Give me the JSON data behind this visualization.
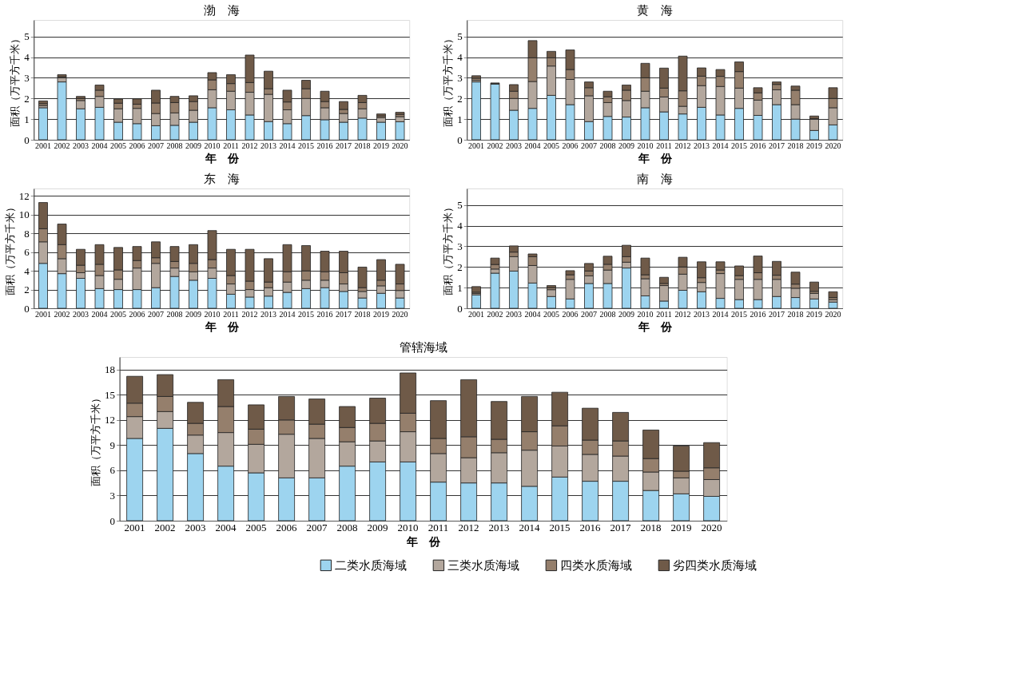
{
  "chart_data": [
    {
      "type": "bar",
      "stacked": true,
      "title": "渤　海",
      "xlabel": "年　份",
      "ylabel": "面积（万平方千米）",
      "categories": [
        "2001",
        "2002",
        "2003",
        "2004",
        "2005",
        "2006",
        "2007",
        "2008",
        "2009",
        "2010",
        "2011",
        "2012",
        "2013",
        "2014",
        "2015",
        "2016",
        "2017",
        "2018",
        "2019",
        "2020"
      ],
      "ylim": [
        0,
        5.8
      ],
      "yticks": [
        0,
        1,
        2,
        3,
        4,
        5
      ],
      "grid": "y",
      "legend": "bottom right",
      "series": [
        {
          "name": "二类水质海域",
          "color": "#9dd4ef",
          "values": [
            1.55,
            2.8,
            1.5,
            1.57,
            0.85,
            0.78,
            0.68,
            0.7,
            0.85,
            1.55,
            1.45,
            1.2,
            0.88,
            0.78,
            1.17,
            0.97,
            0.85,
            1.05,
            0.85,
            0.87
          ]
        },
        {
          "name": "三类水质海域",
          "color": "#b3a79d",
          "values": [
            0.1,
            0.2,
            0.4,
            0.53,
            0.65,
            0.74,
            0.59,
            0.6,
            0.58,
            0.87,
            0.9,
            1.1,
            1.32,
            0.67,
            0.83,
            0.58,
            0.42,
            0.45,
            0.22,
            0.25
          ]
        },
        {
          "name": "四类水质海域",
          "color": "#957f6c",
          "values": [
            0.1,
            0.05,
            0.1,
            0.3,
            0.27,
            0.2,
            0.51,
            0.5,
            0.42,
            0.48,
            0.37,
            0.47,
            0.27,
            0.38,
            0.47,
            0.3,
            0.2,
            0.3,
            0.08,
            0.11
          ]
        },
        {
          "name": "劣四类水质海域",
          "color": "#6f5a48",
          "values": [
            0.13,
            0.1,
            0.1,
            0.25,
            0.2,
            0.26,
            0.62,
            0.3,
            0.28,
            0.35,
            0.43,
            1.33,
            0.85,
            0.57,
            0.41,
            0.5,
            0.38,
            0.35,
            0.1,
            0.1
          ]
        }
      ]
    },
    {
      "type": "bar",
      "stacked": true,
      "title": "黄　海",
      "xlabel": "年　份",
      "ylabel": "面积（万平方千米）",
      "categories": [
        "2001",
        "2002",
        "2003",
        "2004",
        "2005",
        "2006",
        "2007",
        "2008",
        "2009",
        "2010",
        "2011",
        "2012",
        "2013",
        "2014",
        "2015",
        "2016",
        "2017",
        "2018",
        "2019",
        "2020"
      ],
      "ylim": [
        0,
        5.8
      ],
      "yticks": [
        0,
        1,
        2,
        3,
        4,
        5
      ],
      "grid": "y",
      "series": [
        {
          "color": "#9dd4ef",
          "values": [
            2.8,
            2.7,
            1.43,
            1.52,
            2.15,
            1.7,
            0.88,
            1.13,
            1.1,
            1.55,
            1.35,
            1.25,
            1.57,
            1.2,
            1.52,
            1.18,
            1.7,
            1.0,
            0.45,
            0.72
          ]
        },
        {
          "color": "#b3a79d",
          "values": [
            0.08,
            null,
            0.57,
            1.3,
            1.42,
            1.22,
            1.25,
            0.67,
            0.8,
            0.8,
            0.72,
            0.37,
            1.05,
            1.38,
            0.98,
            0.74,
            0.72,
            0.7,
            0.55,
            0.83
          ]
        },
        {
          "color": "#957f6c",
          "values": [
            0.1,
            0.02,
            0.35,
            1.15,
            0.4,
            0.48,
            0.39,
            0.28,
            0.5,
            0.65,
            0.43,
            0.75,
            0.46,
            0.49,
            0.8,
            0.35,
            0.26,
            0.7,
            0.02,
            0.45
          ]
        },
        {
          "color": "#6f5a48",
          "values": [
            0.12,
            0.03,
            0.32,
            0.83,
            0.31,
            0.95,
            0.28,
            0.27,
            0.25,
            0.7,
            0.97,
            1.68,
            0.4,
            0.33,
            0.47,
            0.25,
            0.12,
            0.2,
            0.13,
            0.52
          ]
        }
      ]
    },
    {
      "type": "bar",
      "stacked": true,
      "title": "东　海",
      "xlabel": "年　份",
      "ylabel": "面积（万平方千米）",
      "categories": [
        "2001",
        "2002",
        "2003",
        "2004",
        "2005",
        "2006",
        "2007",
        "2008",
        "2009",
        "2010",
        "2011",
        "2012",
        "2013",
        "2014",
        "2015",
        "2016",
        "2017",
        "2018",
        "2019",
        "2020"
      ],
      "ylim": [
        0,
        12.8
      ],
      "yticks": [
        0,
        2,
        4,
        6,
        8,
        10,
        12
      ],
      "grid": "y",
      "series": [
        {
          "color": "#9dd4ef",
          "values": [
            4.8,
            3.7,
            3.2,
            2.1,
            2.0,
            2.0,
            2.2,
            3.4,
            3.0,
            3.2,
            1.5,
            1.2,
            1.3,
            1.7,
            2.1,
            2.2,
            1.8,
            1.1,
            1.6,
            1.1
          ]
        },
        {
          "color": "#b3a79d",
          "values": [
            2.3,
            1.6,
            0.6,
            1.4,
            1.1,
            2.3,
            2.6,
            0.9,
            0.9,
            1.1,
            1.1,
            0.8,
            0.9,
            1.1,
            0.9,
            0.8,
            0.8,
            0.7,
            0.8,
            0.8
          ]
        },
        {
          "color": "#957f6c",
          "values": [
            1.4,
            1.5,
            0.8,
            1.2,
            1.0,
            0.8,
            0.6,
            0.7,
            0.9,
            0.9,
            0.9,
            0.9,
            0.6,
            1.1,
            1.0,
            0.9,
            1.2,
            0.4,
            0.6,
            0.7
          ]
        },
        {
          "color": "#6f5a48",
          "values": [
            2.8,
            2.2,
            1.7,
            2.1,
            2.4,
            1.5,
            1.7,
            1.6,
            2.0,
            3.1,
            2.8,
            3.4,
            2.5,
            2.9,
            2.7,
            2.2,
            2.3,
            2.2,
            2.2,
            2.1
          ]
        }
      ]
    },
    {
      "type": "bar",
      "stacked": true,
      "title": "南　海",
      "xlabel": "年　份",
      "ylabel": "面积（万平方千米）",
      "categories": [
        "2001",
        "2002",
        "2003",
        "2004",
        "2005",
        "2006",
        "2007",
        "2008",
        "2009",
        "2010",
        "2011",
        "2012",
        "2013",
        "2014",
        "2015",
        "2016",
        "2017",
        "2018",
        "2019",
        "2020"
      ],
      "ylim": [
        0,
        5.8
      ],
      "yticks": [
        0,
        1,
        2,
        3,
        4,
        5
      ],
      "grid": "y",
      "series": [
        {
          "color": "#9dd4ef",
          "values": [
            0.65,
            1.7,
            1.8,
            1.22,
            0.57,
            0.45,
            1.2,
            1.2,
            1.95,
            0.6,
            0.35,
            0.87,
            0.8,
            0.48,
            0.42,
            0.42,
            0.57,
            0.52,
            0.45,
            0.3
          ]
        },
        {
          "color": "#b3a79d",
          "values": [
            0.07,
            0.2,
            0.7,
            0.85,
            0.33,
            0.95,
            0.37,
            0.65,
            0.28,
            0.83,
            0.75,
            0.78,
            0.45,
            1.2,
            0.98,
            0.98,
            0.83,
            0.45,
            0.27,
            0.12
          ]
        },
        {
          "color": "#957f6c",
          "values": [
            0.06,
            0.22,
            0.22,
            0.43,
            0.1,
            0.22,
            0.23,
            0.28,
            0.27,
            0.19,
            0.1,
            0.35,
            0.23,
            0.17,
            0.18,
            0.32,
            0.2,
            0.2,
            0.1,
            0.1
          ]
        },
        {
          "color": "#6f5a48",
          "values": [
            0.27,
            0.31,
            0.3,
            0.13,
            0.1,
            0.2,
            0.37,
            0.39,
            0.55,
            0.81,
            0.3,
            0.47,
            0.77,
            0.4,
            0.47,
            0.81,
            0.67,
            0.58,
            0.45,
            0.28
          ]
        }
      ]
    },
    {
      "type": "bar",
      "stacked": true,
      "title": "管辖海域",
      "xlabel": "年　份",
      "ylabel": "面积（万平方千米）",
      "categories": [
        "2001",
        "2002",
        "2003",
        "2004",
        "2005",
        "2006",
        "2007",
        "2008",
        "2009",
        "2010",
        "2011",
        "2012",
        "2013",
        "2014",
        "2015",
        "2016",
        "2017",
        "2018",
        "2019",
        "2020"
      ],
      "ylim": [
        0,
        19.5
      ],
      "yticks": [
        0,
        3,
        6,
        9,
        12,
        15,
        18
      ],
      "grid": "y",
      "series": [
        {
          "color": "#9dd4ef",
          "values": [
            9.8,
            11.0,
            8.0,
            6.5,
            5.7,
            5.1,
            5.1,
            6.5,
            7.0,
            7.0,
            4.6,
            4.5,
            4.5,
            4.1,
            5.2,
            4.7,
            4.7,
            3.6,
            3.2,
            2.9
          ]
        },
        {
          "color": "#b3a79d",
          "values": [
            2.6,
            2.0,
            2.2,
            4.0,
            3.4,
            5.2,
            4.7,
            2.9,
            2.5,
            3.6,
            3.4,
            3.0,
            3.6,
            4.3,
            3.7,
            3.2,
            3.0,
            2.2,
            1.9,
            2.0
          ]
        },
        {
          "color": "#957f6c",
          "values": [
            1.6,
            1.8,
            1.4,
            3.1,
            1.8,
            1.7,
            1.7,
            1.7,
            2.1,
            2.2,
            1.8,
            2.5,
            1.6,
            2.2,
            2.4,
            1.7,
            1.8,
            1.6,
            0.8,
            1.4
          ]
        },
        {
          "color": "#6f5a48",
          "values": [
            3.2,
            2.6,
            2.5,
            3.2,
            2.9,
            2.8,
            3.0,
            2.5,
            3.0,
            4.8,
            4.5,
            6.8,
            4.5,
            4.2,
            4.0,
            3.8,
            3.4,
            3.4,
            3.0,
            3.0
          ]
        }
      ]
    }
  ]
}
